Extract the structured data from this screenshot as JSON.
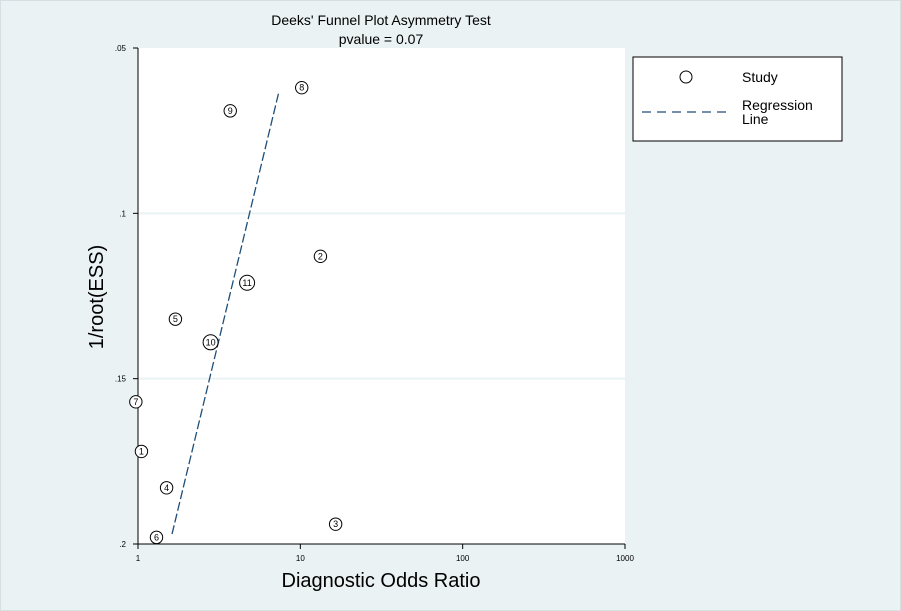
{
  "chart_data": {
    "type": "scatter",
    "title": "Deeks' Funnel Plot Asymmetry Test",
    "subtitle": "pvalue  =   0.07",
    "xlabel": "Diagnostic Odds Ratio",
    "ylabel": "1/root(ESS)",
    "x_scale": "log",
    "xlim": [
      1,
      1000
    ],
    "ylim": [
      0.2,
      0.05
    ],
    "y_inverted": true,
    "x_ticks": [
      1,
      10,
      100,
      1000
    ],
    "x_tick_labels": [
      "1",
      "10",
      "100",
      "1000"
    ],
    "y_ticks": [
      0.05,
      0.1,
      0.15,
      0.2
    ],
    "y_tick_labels": [
      ".05",
      ".1",
      ".15",
      ".2"
    ],
    "grid": {
      "horizontal": true,
      "vertical": false
    },
    "legend": {
      "placement": "right",
      "entries": [
        {
          "label": "Study",
          "marker": "circle"
        },
        {
          "label": "Regression\nLine",
          "marker": "dashed-line"
        }
      ]
    },
    "series": [
      {
        "name": "Study",
        "points": [
          {
            "label": "1",
            "x": 1.05,
            "y": 0.172
          },
          {
            "label": "2",
            "x": 13.3,
            "y": 0.113
          },
          {
            "label": "3",
            "x": 16.5,
            "y": 0.194
          },
          {
            "label": "4",
            "x": 1.5,
            "y": 0.183
          },
          {
            "label": "5",
            "x": 1.7,
            "y": 0.132
          },
          {
            "label": "6",
            "x": 1.3,
            "y": 0.198
          },
          {
            "label": "7",
            "x": 0.97,
            "y": 0.157
          },
          {
            "label": "8",
            "x": 10.2,
            "y": 0.062
          },
          {
            "label": "9",
            "x": 3.7,
            "y": 0.069
          },
          {
            "label": "10",
            "x": 2.8,
            "y": 0.139
          },
          {
            "label": "11",
            "x": 4.7,
            "y": 0.121
          }
        ]
      },
      {
        "name": "Regression Line",
        "type": "line",
        "style": "dashed",
        "points": [
          {
            "x": 1.62,
            "y": 0.197
          },
          {
            "x": 7.4,
            "y": 0.063
          }
        ]
      }
    ]
  },
  "colors": {
    "background": "#eaf2f3",
    "plot_background": "#ffffff",
    "regression_line": "#1f4e79",
    "grid": "#eaf2f3",
    "marker": "#000000"
  }
}
